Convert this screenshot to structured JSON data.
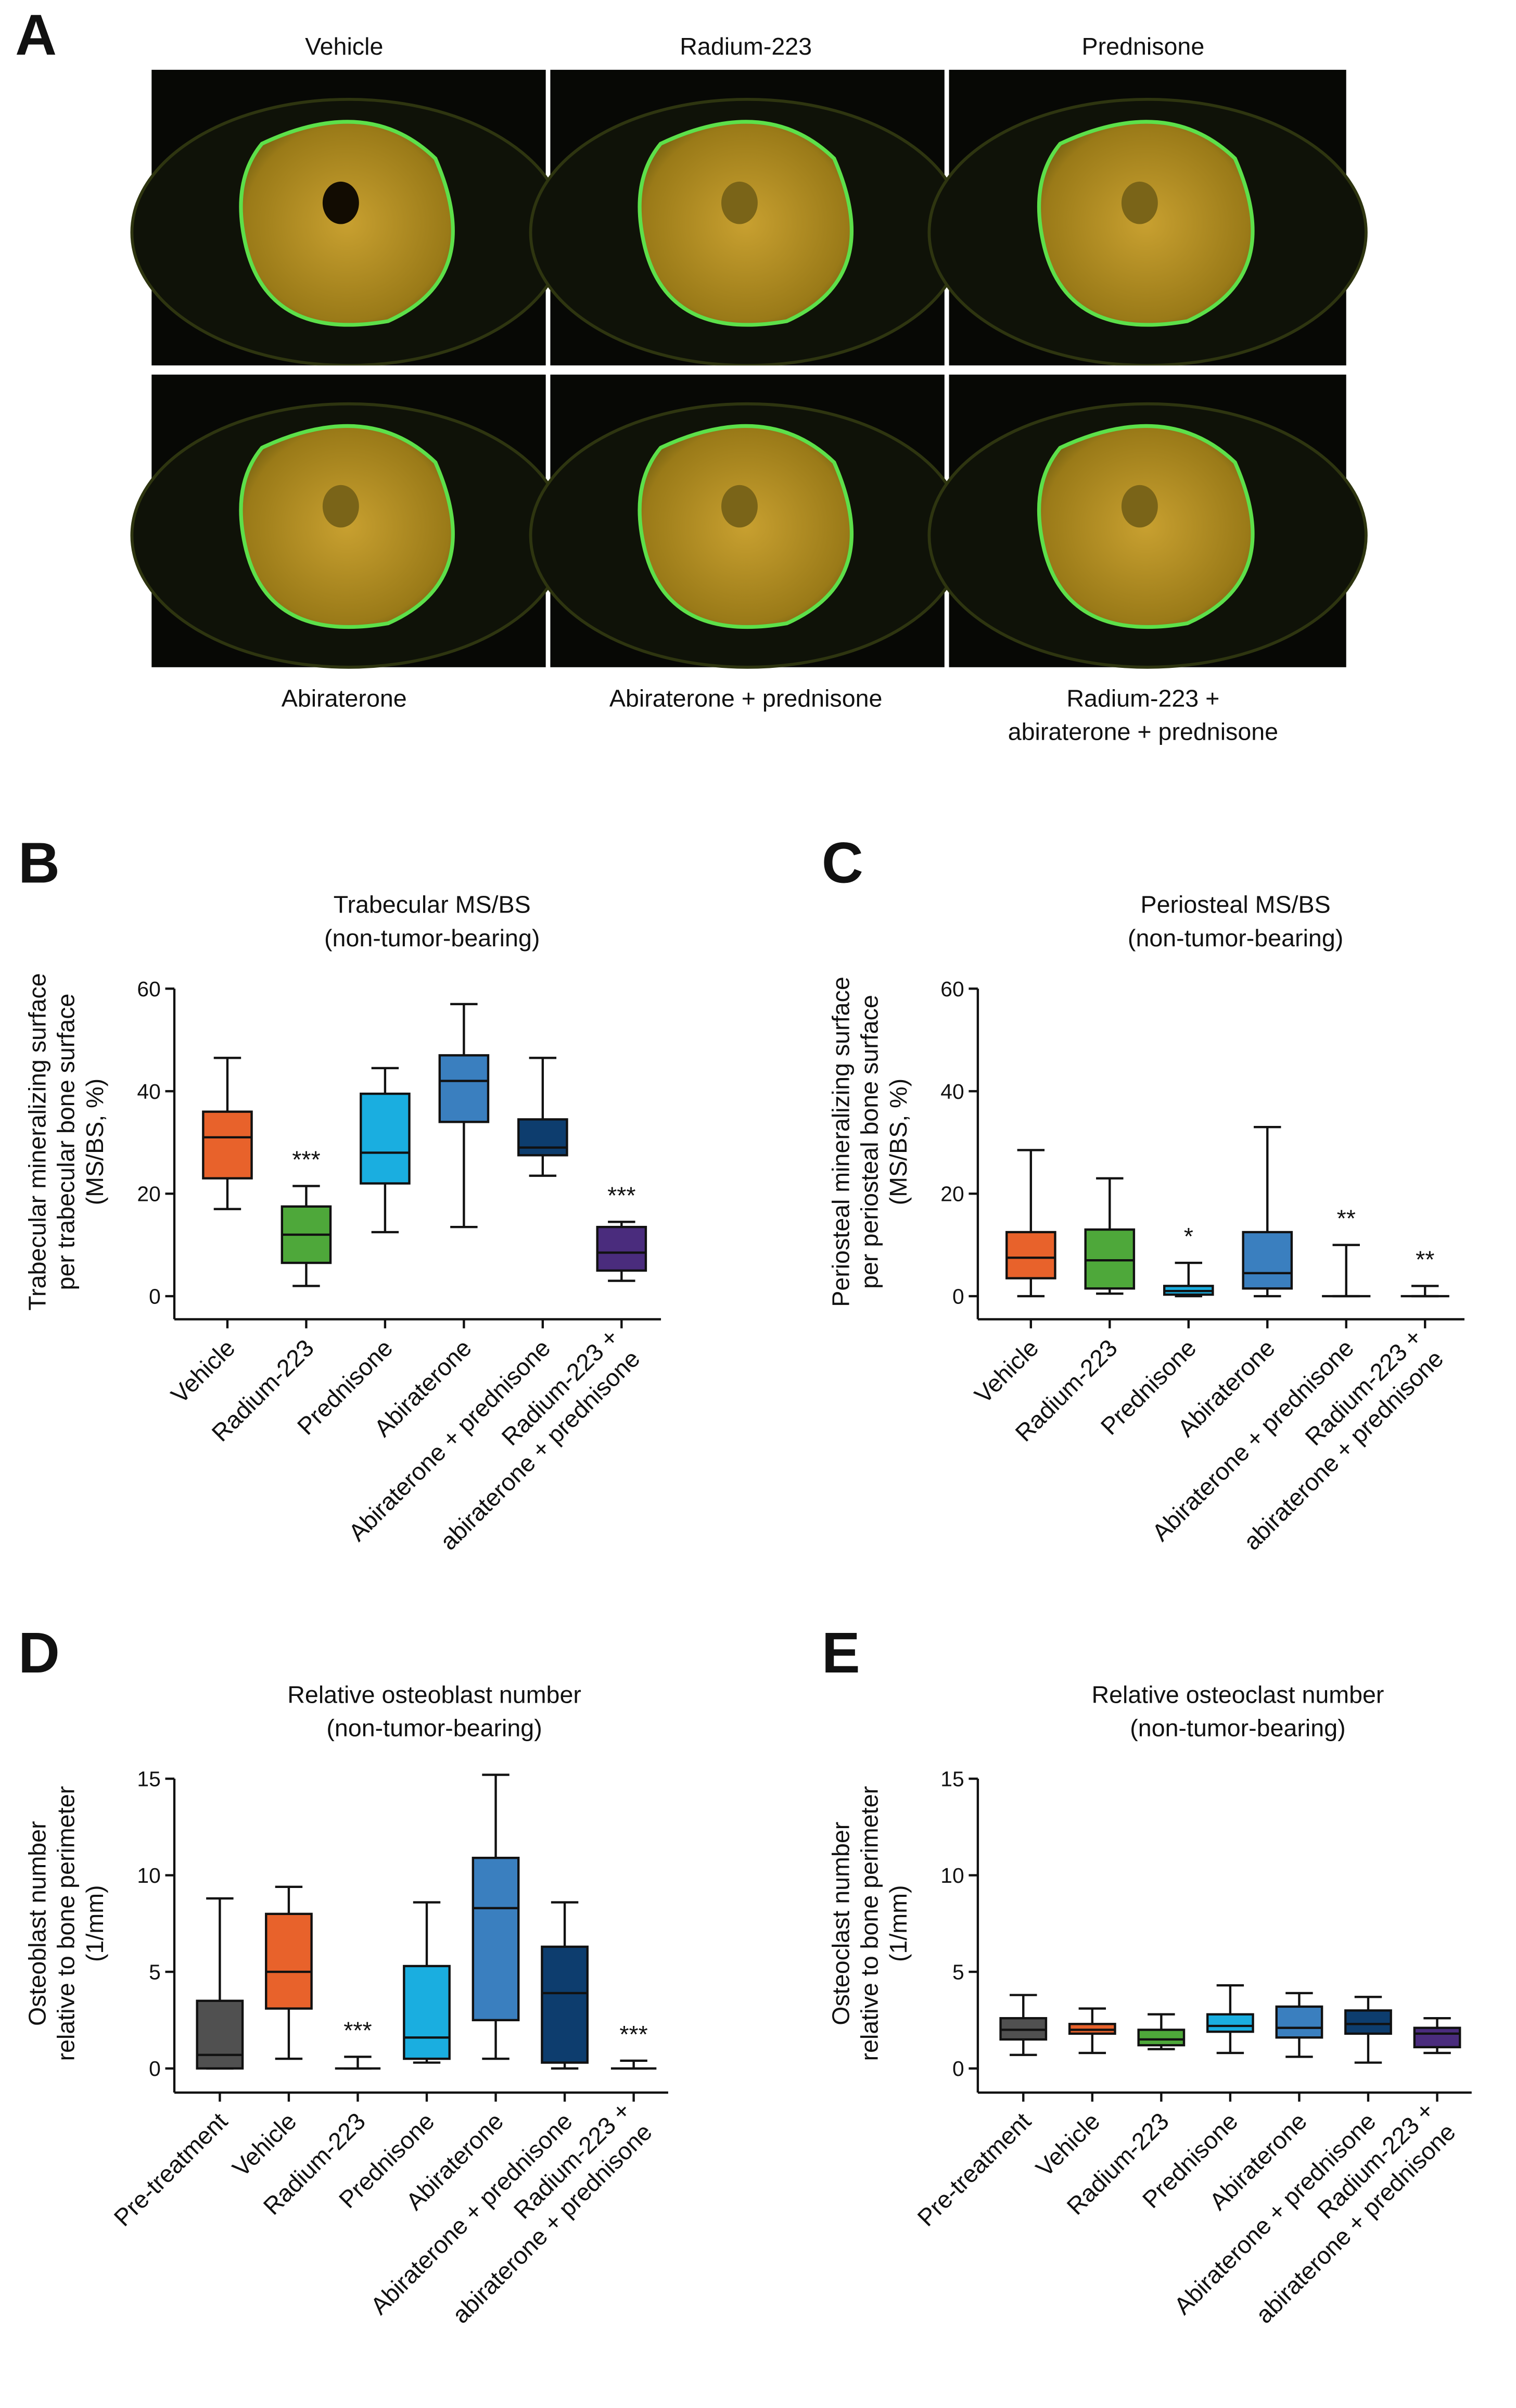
{
  "panel_a": {
    "letter": "A",
    "labels": [
      "Vehicle",
      "Radium-223",
      "Prednisone",
      "Abiraterone",
      "Abiraterone + prednisone",
      "Radium-223 +\nabiraterone + prednisone"
    ]
  },
  "chart_data": [
    {
      "type": "box",
      "panel": "B",
      "title": "Trabecular MS/BS\n(non-tumor-bearing)",
      "y_label": "Trabecular mineralizing surface\nper trabecular bone surface\n(MS/BS, %)",
      "categories": [
        "Vehicle",
        "Radium-223",
        "Prednisone",
        "Abiraterone",
        "Abiraterone + prednisone",
        "Radium-223 +\nabiraterone + prednisone"
      ],
      "colors": [
        "#e8622b",
        "#4ea83a",
        "#1aaee0",
        "#3a7fbf",
        "#0d3d6e",
        "#4a2c7d"
      ],
      "boxes": [
        {
          "min": 17,
          "q1": 23,
          "median": 31,
          "q3": 36,
          "max": 46.5
        },
        {
          "min": 2,
          "q1": 6.5,
          "median": 12,
          "q3": 17.5,
          "max": 21.5
        },
        {
          "min": 12.5,
          "q1": 22,
          "median": 28,
          "q3": 39.5,
          "max": 44.5
        },
        {
          "min": 13.5,
          "q1": 34,
          "median": 42,
          "q3": 47,
          "max": 57
        },
        {
          "min": 23.5,
          "q1": 27.5,
          "median": 29,
          "q3": 34.5,
          "max": 46.5
        },
        {
          "min": 3,
          "q1": 5,
          "median": 8.5,
          "q3": 13.5,
          "max": 14.5
        }
      ],
      "annotations": [
        null,
        "***",
        null,
        null,
        null,
        "***"
      ],
      "ylim": [
        -4.5,
        60
      ],
      "yticks": [
        0,
        20,
        40,
        60
      ]
    },
    {
      "type": "box",
      "panel": "C",
      "title": "Periosteal MS/BS\n(non-tumor-bearing)",
      "y_label": "Periosteal mineralizing surface\nper periosteal bone surface\n(MS/BS, %)",
      "categories": [
        "Vehicle",
        "Radium-223",
        "Prednisone",
        "Abiraterone",
        "Abiraterone + prednisone",
        "Radium-223 +\nabiraterone + prednisone"
      ],
      "colors": [
        "#e8622b",
        "#4ea83a",
        "#1aaee0",
        "#3a7fbf",
        "#0d3d6e",
        "#4a2c7d"
      ],
      "boxes": [
        {
          "min": 0,
          "q1": 3.5,
          "median": 7.5,
          "q3": 12.5,
          "max": 28.5
        },
        {
          "min": 0.5,
          "q1": 1.5,
          "median": 7,
          "q3": 13,
          "max": 23
        },
        {
          "min": 0,
          "q1": 0.3,
          "median": 1,
          "q3": 2,
          "max": 6.5
        },
        {
          "min": 0,
          "q1": 1.5,
          "median": 4.5,
          "q3": 12.5,
          "max": 33
        },
        {
          "min": 0,
          "q1": 0,
          "median": 0,
          "q3": 0,
          "max": 10
        },
        {
          "min": 0,
          "q1": 0,
          "median": 0,
          "q3": 0,
          "max": 2
        }
      ],
      "annotations": [
        null,
        null,
        "*",
        null,
        "**",
        "**"
      ],
      "ylim": [
        -4.5,
        60
      ],
      "yticks": [
        0,
        20,
        40,
        60
      ]
    },
    {
      "type": "box",
      "panel": "D",
      "title": "Relative osteoblast number\n(non-tumor-bearing)",
      "y_label": "Osteoblast number\nrelative to bone perimeter\n(1/mm)",
      "categories": [
        "Pre-treatment",
        "Vehicle",
        "Radium-223",
        "Prednisone",
        "Abiraterone",
        "Abiraterone + prednisone",
        "Radium-223 +\nabiraterone + prednisone"
      ],
      "colors": [
        "#505050",
        "#e8622b",
        "#4ea83a",
        "#1aaee0",
        "#3a7fbf",
        "#0d3d6e",
        "#4a2c7d"
      ],
      "boxes": [
        {
          "min": 0,
          "q1": 0,
          "median": 0.7,
          "q3": 3.5,
          "max": 8.8
        },
        {
          "min": 0.5,
          "q1": 3.1,
          "median": 5,
          "q3": 8,
          "max": 9.4
        },
        {
          "min": 0,
          "q1": 0,
          "median": 0,
          "q3": 0,
          "max": 0.6
        },
        {
          "min": 0.3,
          "q1": 0.5,
          "median": 1.6,
          "q3": 5.3,
          "max": 8.6
        },
        {
          "min": 0.5,
          "q1": 2.5,
          "median": 8.3,
          "q3": 10.9,
          "max": 15.2
        },
        {
          "min": 0,
          "q1": 0.3,
          "median": 3.9,
          "q3": 6.3,
          "max": 8.6
        },
        {
          "min": 0,
          "q1": 0,
          "median": 0,
          "q3": 0,
          "max": 0.4
        }
      ],
      "annotations": [
        null,
        null,
        "***",
        null,
        null,
        null,
        "***"
      ],
      "ylim": [
        -1.25,
        15
      ],
      "yticks": [
        0,
        5,
        10,
        15
      ]
    },
    {
      "type": "box",
      "panel": "E",
      "title": "Relative osteoclast number\n(non-tumor-bearing)",
      "y_label": "Osteoclast number\nrelative to bone perimeter\n(1/mm)",
      "categories": [
        "Pre-treatment",
        "Vehicle",
        "Radium-223",
        "Prednisone",
        "Abiraterone",
        "Abiraterone + prednisone",
        "Radium-223 +\nabiraterone + prednisone"
      ],
      "colors": [
        "#505050",
        "#e8622b",
        "#4ea83a",
        "#1aaee0",
        "#3a7fbf",
        "#0d3d6e",
        "#4a2c7d"
      ],
      "boxes": [
        {
          "min": 0.7,
          "q1": 1.5,
          "median": 2,
          "q3": 2.6,
          "max": 3.8
        },
        {
          "min": 0.8,
          "q1": 1.8,
          "median": 2,
          "q3": 2.3,
          "max": 3.1
        },
        {
          "min": 1,
          "q1": 1.2,
          "median": 1.5,
          "q3": 2,
          "max": 2.8
        },
        {
          "min": 0.8,
          "q1": 1.9,
          "median": 2.2,
          "q3": 2.8,
          "max": 4.3
        },
        {
          "min": 0.6,
          "q1": 1.6,
          "median": 2.1,
          "q3": 3.2,
          "max": 3.9
        },
        {
          "min": 0.3,
          "q1": 1.8,
          "median": 2.3,
          "q3": 3,
          "max": 3.7
        },
        {
          "min": 0.8,
          "q1": 1.1,
          "median": 1.8,
          "q3": 2.1,
          "max": 2.6
        }
      ],
      "annotations": [
        null,
        null,
        null,
        null,
        null,
        null,
        null
      ],
      "ylim": [
        -1.25,
        15
      ],
      "yticks": [
        0,
        5,
        10,
        15
      ]
    }
  ]
}
